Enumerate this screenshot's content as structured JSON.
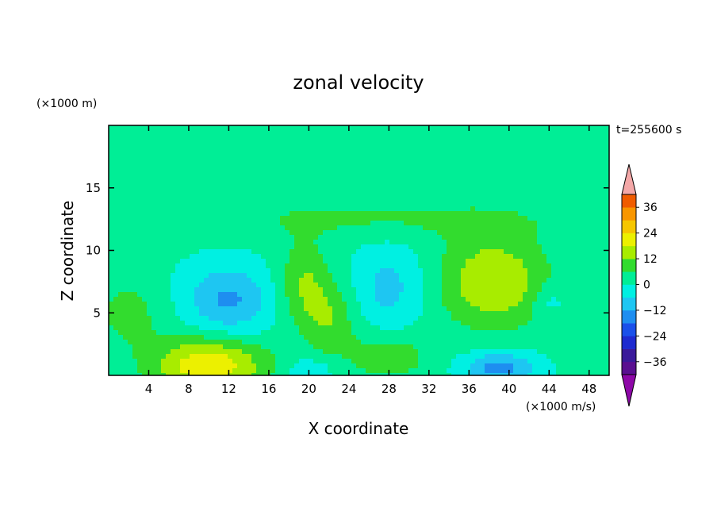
{
  "chart_data": {
    "type": "heatmap",
    "title": "zonal velocity",
    "xlabel": "X coordinate",
    "ylabel": "Z coordinate",
    "x_unit": "(×1000 m/s)",
    "y_unit": "(×1000 m)",
    "time_label": "t=255600 s",
    "xlim": [
      0,
      50
    ],
    "ylim": [
      0,
      20
    ],
    "xticks": [
      4,
      8,
      12,
      16,
      20,
      24,
      28,
      32,
      36,
      40,
      44,
      48
    ],
    "yticks": [
      5,
      10,
      15
    ],
    "colorbar": {
      "levels": [
        -42,
        -36,
        -30,
        -24,
        -18,
        -12,
        -6,
        0,
        6,
        12,
        18,
        24,
        30,
        36,
        42
      ],
      "tick_labels": [
        36,
        24,
        12,
        0,
        -12,
        -24,
        -36
      ],
      "colors": [
        "#5a1090",
        "#3a1a9a",
        "#1e2ad0",
        "#1a50ea",
        "#1e8ef0",
        "#1ec6f2",
        "#00f0e2",
        "#00ee96",
        "#32dc2e",
        "#a8ec00",
        "#ecf000",
        "#f6c600",
        "#f89600",
        "#f05c00",
        "#e81e10",
        "#f4a8a8",
        "#8e08a8"
      ],
      "over_color": "#f4a8a8",
      "under_color": "#8e08a8"
    },
    "fields": [
      {
        "x": 10,
        "z": 0.8,
        "value": 22,
        "sx": 4.0,
        "sz": 1.6
      },
      {
        "x": 19.5,
        "z": 7.5,
        "value": 11,
        "sx": 1.8,
        "sz": 2.2
      },
      {
        "x": 22,
        "z": 4.5,
        "value": 10,
        "sx": 2.0,
        "sz": 2.0
      },
      {
        "x": 28,
        "z": 1.5,
        "value": 9,
        "sx": 3.0,
        "sz": 1.4
      },
      {
        "x": 38.5,
        "z": 7.5,
        "value": 17,
        "sx": 3.8,
        "sz": 2.6
      },
      {
        "x": 2,
        "z": 5,
        "value": 7,
        "sx": 2.5,
        "sz": 2.0
      },
      {
        "x": 12,
        "z": 6,
        "value": -14,
        "sx": 3.0,
        "sz": 2.0
      },
      {
        "x": 28,
        "z": 7,
        "value": -9,
        "sx": 2.5,
        "sz": 2.5
      },
      {
        "x": 39,
        "z": 0.6,
        "value": -16,
        "sx": 2.5,
        "sz": 0.9
      },
      {
        "x": 20,
        "z": 0.3,
        "value": -9,
        "sx": 1.5,
        "sz": 0.7
      },
      {
        "x": 44,
        "z": 6,
        "value": -6,
        "sx": 1.2,
        "sz": 1.0
      },
      {
        "x": 27,
        "z": 12.5,
        "value": 6,
        "sx": 14.0,
        "sz": 1.2
      },
      {
        "x": 25,
        "z": 17,
        "value": 4,
        "sx": 18.0,
        "sz": 1.3
      }
    ],
    "background_value": 1,
    "grid": false,
    "legend": "right"
  }
}
